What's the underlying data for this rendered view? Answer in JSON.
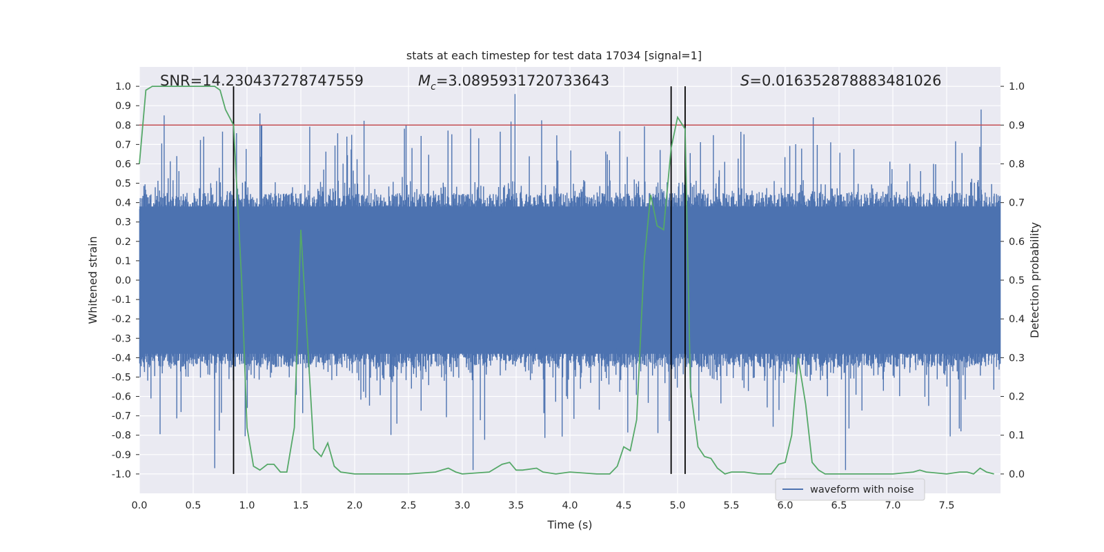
{
  "chart_data": {
    "type": "line",
    "title": "stats at each timestep for test data 17034 [signal=1]",
    "xlabel": "Time (s)",
    "ylabel_left": "Whitened strain",
    "ylabel_right": "Detection probability",
    "xlim": [
      0.0,
      8.0
    ],
    "ylim_left": [
      -1.1,
      1.1
    ],
    "ylim_right": [
      -0.05,
      1.05
    ],
    "x_ticks": [
      "0.0",
      "0.5",
      "1.0",
      "1.5",
      "2.0",
      "2.5",
      "3.0",
      "3.5",
      "4.0",
      "4.5",
      "5.0",
      "5.5",
      "6.0",
      "6.5",
      "7.0",
      "7.5"
    ],
    "y_ticks_left": [
      "1.0",
      "0.9",
      "0.8",
      "0.7",
      "0.6",
      "0.5",
      "0.4",
      "0.3",
      "0.2",
      "0.1",
      "0.0",
      "-0.1",
      "-0.2",
      "-0.3",
      "-0.4",
      "-0.5",
      "-0.6",
      "-0.7",
      "-0.8",
      "-0.9",
      "-1.0"
    ],
    "y_ticks_right": [
      "1.0",
      "0.9",
      "0.8",
      "0.7",
      "0.6",
      "0.5",
      "0.4",
      "0.3",
      "0.2",
      "0.1",
      "0.0"
    ],
    "annotations": {
      "snr_label": "SNR=14.230437278747559",
      "mc_label": "M",
      "mc_sub": "c",
      "mc_value": "=3.0895931720733643",
      "s_label": "S",
      "s_value": "=0.016352878883481026"
    },
    "threshold": {
      "name": "threshold",
      "value": 0.8,
      "axis": "left",
      "color": "#c44e52"
    },
    "vertical_lines": [
      0.875,
      4.94,
      5.07
    ],
    "vertical_line_ylim": [
      -1.0,
      1.0
    ],
    "series": [
      {
        "name": "waveform with noise",
        "axis": "left",
        "color": "#4c72b0",
        "note": "dense noisy strain; core band about [-0.4, 0.4], spikes up to about 0.96 and down to about -0.98",
        "core_band": [
          -0.4,
          0.4
        ],
        "peak_max": 0.96,
        "peak_min": -0.98
      },
      {
        "name": "detection probability",
        "axis": "right",
        "color": "#55a868",
        "x": [
          0.0,
          0.06,
          0.12,
          0.25,
          0.5,
          0.7,
          0.75,
          0.8,
          0.875,
          0.95,
          1.0,
          1.06,
          1.12,
          1.19,
          1.25,
          1.31,
          1.37,
          1.44,
          1.5,
          1.56,
          1.62,
          1.69,
          1.75,
          1.81,
          1.87,
          2.0,
          2.25,
          2.5,
          2.75,
          2.81,
          2.87,
          2.94,
          3.0,
          3.25,
          3.37,
          3.44,
          3.5,
          3.56,
          3.69,
          3.75,
          3.87,
          4.0,
          4.25,
          4.37,
          4.44,
          4.5,
          4.56,
          4.62,
          4.69,
          4.75,
          4.81,
          4.87,
          4.94,
          5.0,
          5.07,
          5.12,
          5.19,
          5.25,
          5.31,
          5.37,
          5.44,
          5.5,
          5.62,
          5.75,
          5.87,
          5.94,
          6.0,
          6.06,
          6.12,
          6.19,
          6.25,
          6.31,
          6.37,
          6.5,
          6.75,
          7.0,
          7.19,
          7.25,
          7.31,
          7.5,
          7.62,
          7.69,
          7.75,
          7.81,
          7.87,
          7.94
        ],
        "values": [
          0.8,
          0.99,
          1.0,
          1.0,
          1.0,
          1.0,
          0.99,
          0.94,
          0.9,
          0.5,
          0.12,
          0.02,
          0.01,
          0.025,
          0.025,
          0.005,
          0.005,
          0.12,
          0.63,
          0.35,
          0.065,
          0.045,
          0.08,
          0.02,
          0.005,
          0.0,
          0.0,
          0.0,
          0.005,
          0.01,
          0.015,
          0.005,
          0.0,
          0.005,
          0.025,
          0.03,
          0.01,
          0.01,
          0.015,
          0.005,
          0.0,
          0.005,
          0.0,
          0.0,
          0.02,
          0.07,
          0.06,
          0.14,
          0.55,
          0.72,
          0.64,
          0.63,
          0.84,
          0.92,
          0.89,
          0.22,
          0.07,
          0.045,
          0.04,
          0.015,
          0.0,
          0.005,
          0.005,
          0.0,
          0.0,
          0.025,
          0.03,
          0.1,
          0.3,
          0.18,
          0.03,
          0.01,
          0.0,
          0.0,
          0.0,
          0.0,
          0.005,
          0.01,
          0.005,
          0.0,
          0.005,
          0.005,
          0.0,
          0.015,
          0.005,
          0.0
        ]
      }
    ],
    "legend": {
      "placement": "bottom-right",
      "entries": [
        "waveform with noise"
      ]
    }
  }
}
